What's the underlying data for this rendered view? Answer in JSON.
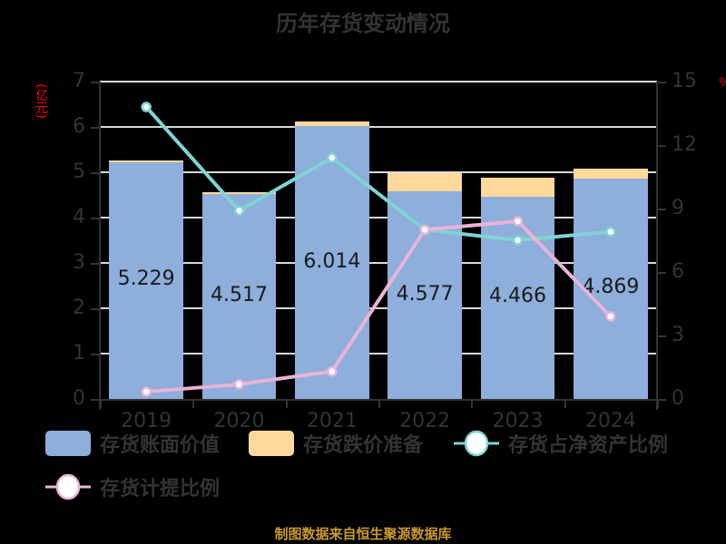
{
  "title": "历年存货变动情况",
  "unit_left": "(亿元)",
  "unit_right": "%",
  "footer": "制图数据来自恒生聚源数据库",
  "colors": {
    "book_value": "#8eaedb",
    "reserve": "#ffd99b",
    "ratio_net_assets": "#7fd3d3",
    "provision_ratio": "#e8b4d8",
    "title": "#333333",
    "unit": "#ff0000",
    "footer": "#c89a2a",
    "background": "#000000"
  },
  "legend": [
    {
      "label": "存货账面价值",
      "type": "bar",
      "color": "#8eaedb"
    },
    {
      "label": "存货跌价准备",
      "type": "bar",
      "color": "#ffd99b"
    },
    {
      "label": "存货占净资产比例",
      "type": "line",
      "color": "#7fd3d3"
    },
    {
      "label": "存货计提比例",
      "type": "line",
      "color": "#e8b4d8"
    }
  ],
  "left_ticks": [
    "0",
    "1",
    "2",
    "3",
    "4",
    "5",
    "6",
    "7"
  ],
  "right_ticks": [
    "0",
    "3",
    "6",
    "9",
    "12",
    "15"
  ],
  "bar_labels": [
    "5.229",
    "4.517",
    "6.014",
    "4.577",
    "4.466",
    "4.869"
  ],
  "chart_data": {
    "type": "bar",
    "title": "历年存货变动情况",
    "categories": [
      "2019",
      "2020",
      "2021",
      "2022",
      "2023",
      "2024"
    ],
    "xlabel": "",
    "ylabel": "(亿元)",
    "y2label": "%",
    "ylim": [
      0,
      7
    ],
    "y2lim": [
      0,
      15
    ],
    "grid": true,
    "legend_position": "bottom",
    "stacked": true,
    "series": [
      {
        "name": "存货账面价值",
        "type": "bar",
        "axis": "left",
        "values": [
          5.229,
          4.517,
          6.014,
          4.577,
          4.466,
          4.869
        ]
      },
      {
        "name": "存货跌价准备",
        "type": "bar",
        "axis": "left",
        "values": [
          0.04,
          0.05,
          0.1,
          0.41,
          0.42,
          0.21
        ]
      },
      {
        "name": "存货占净资产比例",
        "type": "line",
        "axis": "right",
        "values": [
          13.8,
          8.9,
          11.4,
          8.0,
          7.5,
          7.9
        ]
      },
      {
        "name": "存货计提比例",
        "type": "line",
        "axis": "right",
        "values": [
          0.34,
          0.69,
          1.3,
          8.0,
          8.4,
          3.9
        ]
      }
    ]
  }
}
